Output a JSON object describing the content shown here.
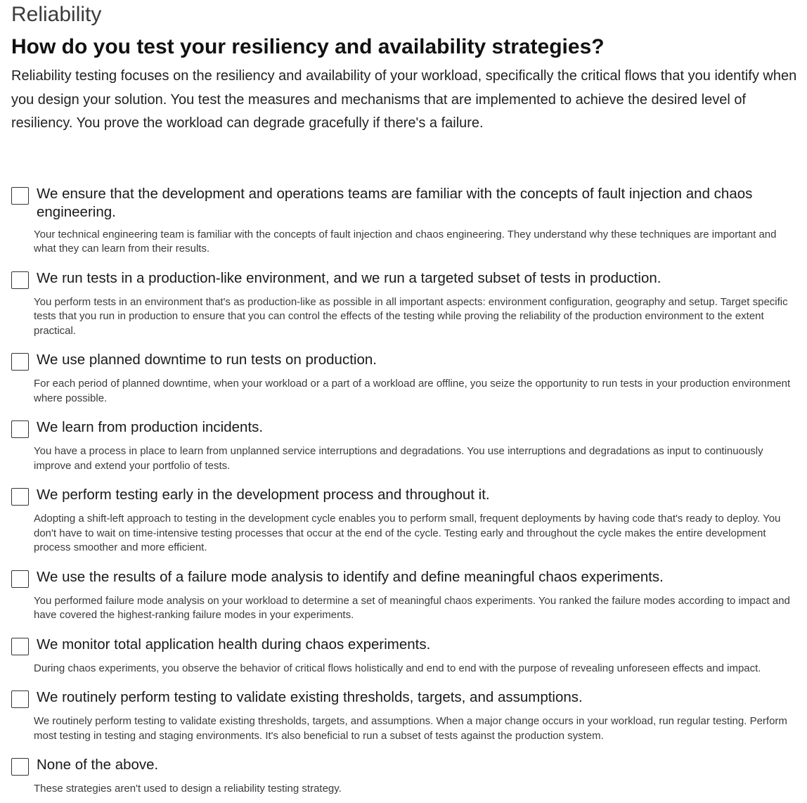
{
  "header": {
    "category": "Reliability",
    "question": "How do you test your resiliency and availability strategies?",
    "intro": "Reliability testing focuses on the resiliency and availability of your workload, specifically the critical flows that you identify when you design your solution. You test the measures and mechanisms that are implemented to achieve the desired level of resiliency. You prove the workload can degrade gracefully if there's a failure."
  },
  "options": [
    {
      "label": "We ensure that the development and operations teams are familiar with the concepts of fault injection and chaos engineering.",
      "description": "Your technical engineering team is familiar with the concepts of fault injection and chaos engineering. They understand why these techniques are important and what they can learn from their results.",
      "checked": false
    },
    {
      "label": "We run tests in a production-like environment, and we run a targeted subset of tests in production.",
      "description": "You perform tests in an environment that's as production-like as possible in all important aspects: environment configuration, geography and setup. Target specific tests that you run in production to ensure that you can control the effects of the testing while proving the reliability of the production environment to the extent practical.",
      "checked": false
    },
    {
      "label": "We use planned downtime to run tests on production.",
      "description": "For each period of planned downtime, when your workload or a part of a workload are offline, you seize the opportunity to run tests in your production environment where possible.",
      "checked": false
    },
    {
      "label": "We learn from production incidents.",
      "description": "You have a process in place to learn from unplanned service interruptions and degradations. You use interruptions and degradations as input to continuously improve and extend your portfolio of tests.",
      "checked": false
    },
    {
      "label": "We perform testing early in the development process and throughout it.",
      "description": "Adopting a shift-left approach to testing in the development cycle enables you to perform small, frequent deployments by having code that's ready to deploy. You don't have to wait on time-intensive testing processes that occur at the end of the cycle. Testing early and throughout the cycle makes the entire development process smoother and more efficient.",
      "checked": false
    },
    {
      "label": "We use the results of a failure mode analysis to identify and define meaningful chaos experiments.",
      "description": "You performed failure mode analysis on your workload to determine a set of meaningful chaos experiments. You ranked the failure modes according to impact and have covered the highest-ranking failure modes in your experiments.",
      "checked": false
    },
    {
      "label": "We monitor total application health during chaos experiments.",
      "description": "During chaos experiments, you observe the behavior of critical flows holistically and end to end with the purpose of revealing unforeseen effects and impact.",
      "checked": false
    },
    {
      "label": "We routinely perform testing to validate existing thresholds, targets, and assumptions.",
      "description": "We routinely perform testing to validate existing thresholds, targets, and assumptions. When a major change occurs in your workload, run regular testing. Perform most testing in testing and staging environments. It's also beneficial to run a subset of tests against the production system.",
      "checked": false
    },
    {
      "label": "None of the above.",
      "description": "These strategies aren't used to design a reliability testing strategy.",
      "checked": false
    }
  ]
}
